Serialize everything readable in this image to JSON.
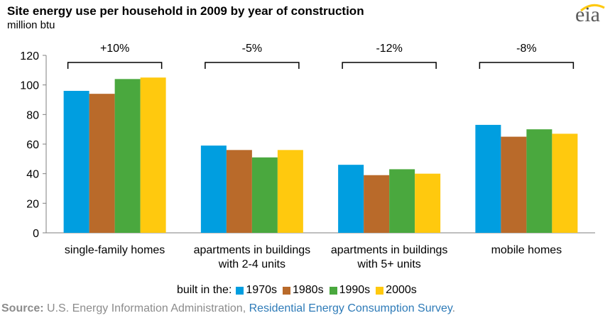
{
  "title": "Site energy use per household in 2009  by year of construction",
  "unit": "million btu",
  "logo": "eia",
  "legend_prefix": "built in the:",
  "source_label": "Source:",
  "source_text": " U.S. Energy Information Administration, ",
  "source_link": "Residential Energy Consumption Survey",
  "source_end": ".",
  "colors": {
    "1970s": "#009ee0",
    "1980s": "#b96a2a",
    "1990s": "#4aa83e",
    "2000s": "#ffc90e"
  },
  "chart_data": {
    "type": "bar",
    "title": "Site energy use per household in 2009  by year of construction",
    "ylabel": "million btu",
    "ylim": [
      0,
      120
    ],
    "yticks": [
      0,
      20,
      40,
      60,
      80,
      100,
      120
    ],
    "categories": [
      [
        "single-family homes"
      ],
      [
        "apartments in buildings",
        "with 2-4 units"
      ],
      [
        "apartments in buildings",
        "with 5+ units"
      ],
      [
        "mobile homes"
      ]
    ],
    "series": [
      {
        "name": "1970s",
        "values": [
          96,
          59,
          46,
          73
        ]
      },
      {
        "name": "1980s",
        "values": [
          94,
          56,
          39,
          65
        ]
      },
      {
        "name": "1990s",
        "values": [
          104,
          51,
          43,
          70
        ]
      },
      {
        "name": "2000s",
        "values": [
          105,
          56,
          40,
          67
        ]
      }
    ],
    "annotations": [
      "+10%",
      "-5%",
      "-12%",
      "-8%"
    ],
    "grid": false,
    "legend_position": "bottom"
  }
}
